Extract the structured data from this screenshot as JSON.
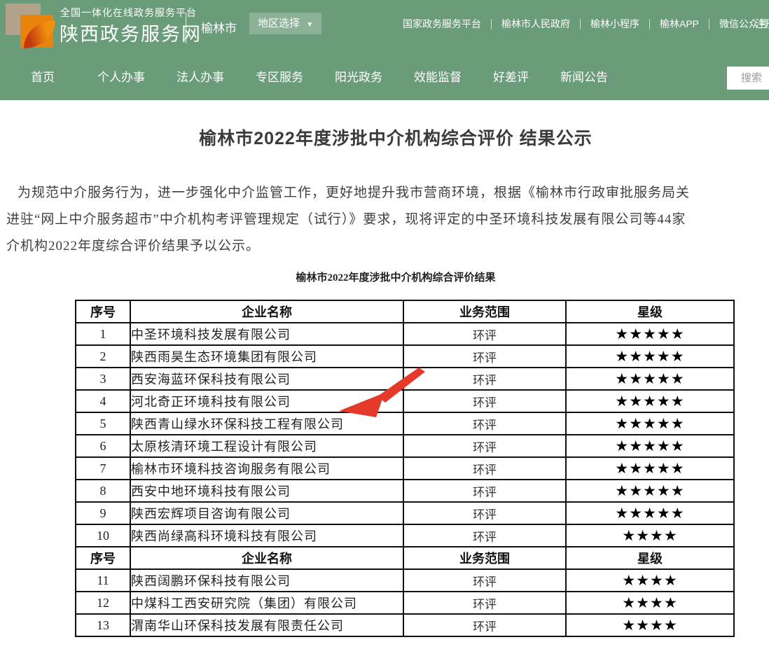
{
  "header": {
    "platform_label": "全国一体化在线政务服务平台",
    "site_name": "陕西政务服务网",
    "city": "榆林市",
    "region_selector": "地区选择",
    "caret_icon": "▼",
    "links": [
      "国家政务服务平台",
      "榆林市人民政府",
      "榆林小程序",
      "榆林APP",
      "微信公众号"
    ],
    "register": "注册"
  },
  "nav": {
    "items": [
      "首页",
      "个人办事",
      "法人办事",
      "专区服务",
      "阳光政务",
      "效能监督",
      "好差评",
      "新闻公告"
    ],
    "search_placeholder": "搜索"
  },
  "article": {
    "title": "榆林市2022年度涉批中介机构综合评价 结果公示",
    "paragraph_lines": [
      "为规范中介服务行为，进一步强化中介监管工作，更好地提升我市营商环境，根据《榆林市行政审批服务局关",
      "进驻“网上中介服务超市”中介机构考评管理规定（试行）》要求，现将评定的中圣环境科技发展有限公司等44家",
      "介机构2022年度综合评价结果予以公示。"
    ],
    "table_caption": "榆林市2022年度涉批中介机构综合评价结果"
  },
  "table": {
    "columns": [
      "序号",
      "企业名称",
      "业务范围",
      "星级"
    ],
    "rows": [
      {
        "type": "data",
        "no": "1",
        "name": "中圣环境科技发展有限公司",
        "scope": "环评",
        "stars": "★★★★★"
      },
      {
        "type": "data",
        "no": "2",
        "name": "陕西雨昊生态环境集团有限公司",
        "scope": "环评",
        "stars": "★★★★★"
      },
      {
        "type": "data",
        "no": "3",
        "name": "西安海蓝环保科技有限公司",
        "scope": "环评",
        "stars": "★★★★★"
      },
      {
        "type": "data",
        "no": "4",
        "name": "河北奇正环境科技有限公司",
        "scope": "环评",
        "stars": "★★★★★"
      },
      {
        "type": "data",
        "no": "5",
        "name": "陕西青山绿水环保科技工程有限公司",
        "scope": "环评",
        "stars": "★★★★★"
      },
      {
        "type": "data",
        "no": "6",
        "name": "太原核清环境工程设计有限公司",
        "scope": "环评",
        "stars": "★★★★★"
      },
      {
        "type": "data",
        "no": "7",
        "name": "榆林市环境科技咨询服务有限公司",
        "scope": "环评",
        "stars": "★★★★★"
      },
      {
        "type": "data",
        "no": "8",
        "name": "西安中地环境科技有限公司",
        "scope": "环评",
        "stars": "★★★★★"
      },
      {
        "type": "data",
        "no": "9",
        "name": "陕西宏辉项目咨询有限公司",
        "scope": "环评",
        "stars": "★★★★★"
      },
      {
        "type": "data",
        "no": "10",
        "name": "陕西尚绿高科环境科技有限公司",
        "scope": "环评",
        "stars": "★★★★"
      },
      {
        "type": "header"
      },
      {
        "type": "data",
        "no": "11",
        "name": "陕西阔鹏环保科技有限公司",
        "scope": "环评",
        "stars": "★★★★"
      },
      {
        "type": "data",
        "no": "12",
        "name": "中煤科工西安研究院（集团）有限公司",
        "scope": "环评",
        "stars": "★★★★"
      },
      {
        "type": "data",
        "no": "13",
        "name": "渭南华山环保科技发展有限责任公司",
        "scope": "环评",
        "stars": "★★★★"
      }
    ]
  },
  "colors": {
    "header_green": "#6b9c79",
    "arrow_red": "#e5392a",
    "star_black": "#000000"
  }
}
